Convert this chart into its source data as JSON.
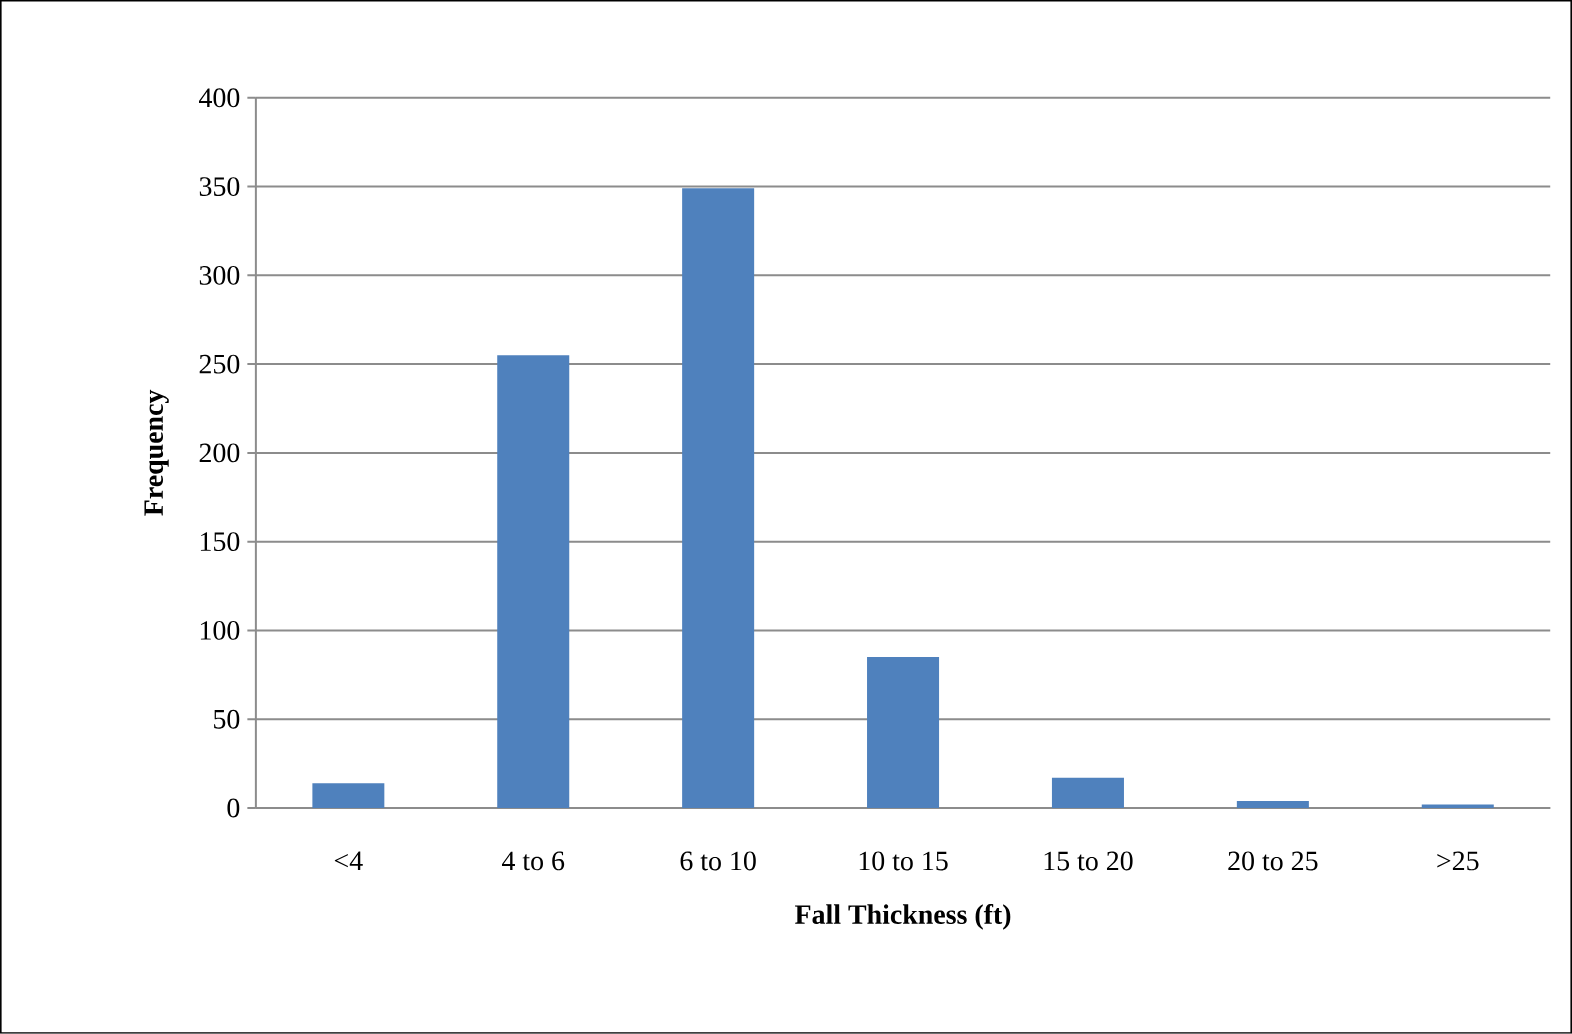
{
  "chart_data": {
    "type": "bar",
    "xlabel": "Fall Thickness (ft)",
    "ylabel": "Frequency",
    "categories": [
      "<4",
      "4 to 6",
      "6 to 10",
      "10 to 15",
      "15 to 20",
      "20 to 25",
      ">25"
    ],
    "values": [
      14,
      255,
      349,
      85,
      17,
      4,
      2
    ],
    "color": "#4f81bd",
    "ylim": [
      0,
      400
    ],
    "yticks": [
      0,
      50,
      100,
      150,
      200,
      250,
      300,
      350,
      400
    ],
    "grid": "y"
  }
}
